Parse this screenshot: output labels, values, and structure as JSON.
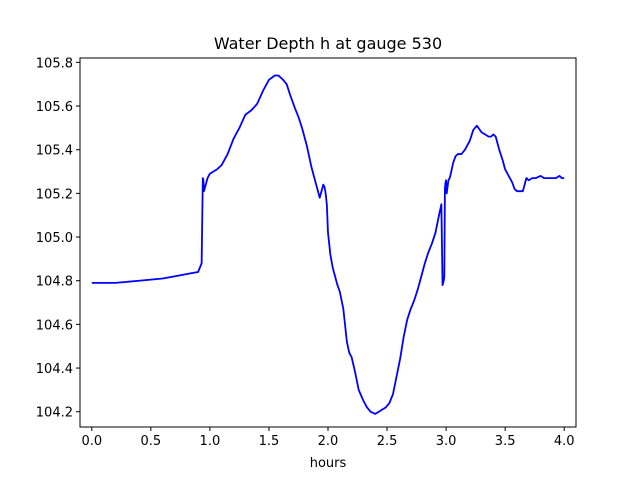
{
  "chart_data": {
    "type": "line",
    "title": "Water Depth h at gauge 530",
    "xlabel": "hours",
    "ylabel": "",
    "xlim": [
      -0.1,
      4.1
    ],
    "ylim": [
      104.13,
      105.82
    ],
    "xticks": [
      0.0,
      0.5,
      1.0,
      1.5,
      2.0,
      2.5,
      3.0,
      3.5,
      4.0
    ],
    "xtick_labels": [
      "0.0",
      "0.5",
      "1.0",
      "1.5",
      "2.0",
      "2.5",
      "3.0",
      "3.5",
      "4.0"
    ],
    "yticks": [
      104.2,
      104.4,
      104.6,
      104.8,
      105.0,
      105.2,
      105.4,
      105.6,
      105.8
    ],
    "ytick_labels": [
      "104.2",
      "104.4",
      "104.6",
      "104.8",
      "105.0",
      "105.2",
      "105.4",
      "105.6",
      "105.8"
    ],
    "grid": false,
    "legend": "none",
    "series": [
      {
        "color": "#0000ff",
        "x": [
          0.0,
          0.2,
          0.4,
          0.6,
          0.7,
          0.8,
          0.9,
          0.93,
          0.94,
          0.945,
          0.95,
          0.96,
          0.98,
          1.0,
          1.03,
          1.06,
          1.1,
          1.15,
          1.2,
          1.25,
          1.3,
          1.35,
          1.4,
          1.45,
          1.5,
          1.55,
          1.58,
          1.62,
          1.65,
          1.68,
          1.72,
          1.75,
          1.78,
          1.82,
          1.86,
          1.9,
          1.93,
          1.95,
          1.96,
          1.97,
          1.98,
          1.99,
          2.0,
          2.02,
          2.04,
          2.06,
          2.08,
          2.1,
          2.13,
          2.16,
          2.18,
          2.2,
          2.23,
          2.26,
          2.3,
          2.33,
          2.36,
          2.4,
          2.43,
          2.46,
          2.49,
          2.52,
          2.55,
          2.58,
          2.61,
          2.64,
          2.67,
          2.7,
          2.73,
          2.76,
          2.79,
          2.82,
          2.85,
          2.88,
          2.91,
          2.94,
          2.96,
          2.97,
          2.98,
          2.985,
          2.99,
          2.995,
          3.0,
          3.005,
          3.01,
          3.02,
          3.03,
          3.04,
          3.06,
          3.08,
          3.1,
          3.13,
          3.16,
          3.2,
          3.23,
          3.26,
          3.3,
          3.33,
          3.36,
          3.38,
          3.4,
          3.42,
          3.45,
          3.48,
          3.5,
          3.53,
          3.56,
          3.58,
          3.6,
          3.62,
          3.65,
          3.68,
          3.7,
          3.73,
          3.76,
          3.8,
          3.83,
          3.86,
          3.88,
          3.9,
          3.905,
          3.91,
          3.93,
          3.96,
          3.98,
          4.0
        ],
        "y": [
          104.79,
          104.79,
          104.8,
          104.81,
          104.82,
          104.83,
          104.84,
          104.88,
          105.27,
          105.26,
          105.21,
          105.23,
          105.27,
          105.29,
          105.3,
          105.31,
          105.33,
          105.38,
          105.45,
          105.5,
          105.56,
          105.58,
          105.61,
          105.67,
          105.72,
          105.74,
          105.74,
          105.72,
          105.7,
          105.65,
          105.59,
          105.55,
          105.5,
          105.42,
          105.32,
          105.24,
          105.18,
          105.22,
          105.24,
          105.23,
          105.2,
          105.15,
          105.02,
          104.92,
          104.86,
          104.82,
          104.78,
          104.75,
          104.67,
          104.52,
          104.47,
          104.45,
          104.38,
          104.3,
          104.25,
          104.22,
          104.2,
          104.19,
          104.2,
          104.21,
          104.22,
          104.24,
          104.28,
          104.36,
          104.44,
          104.54,
          104.62,
          104.67,
          104.71,
          104.76,
          104.82,
          104.88,
          104.93,
          104.97,
          105.02,
          105.1,
          105.15,
          104.78,
          104.8,
          104.82,
          105.22,
          105.25,
          105.26,
          105.2,
          105.22,
          105.26,
          105.27,
          105.29,
          105.34,
          105.37,
          105.38,
          105.38,
          105.4,
          105.44,
          105.49,
          105.51,
          105.48,
          105.47,
          105.46,
          105.46,
          105.47,
          105.46,
          105.4,
          105.35,
          105.31,
          105.28,
          105.25,
          105.22,
          105.21,
          105.21,
          105.21,
          105.27,
          105.26,
          105.27,
          105.27,
          105.28,
          105.27,
          105.27,
          105.27,
          105.27,
          105.27,
          105.27,
          105.27,
          105.28,
          105.27,
          105.27
        ]
      }
    ]
  }
}
